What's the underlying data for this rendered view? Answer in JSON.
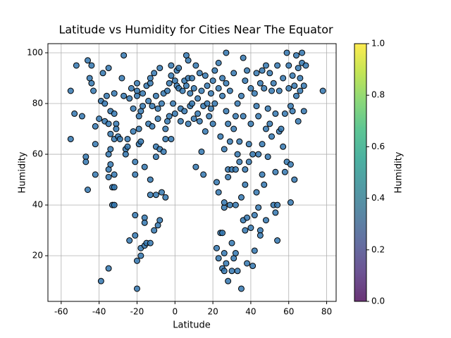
{
  "chart_data": {
    "type": "scatter",
    "title": "Latitude vs Humidity for Cities Near The Equator",
    "x_label": "Latitude",
    "y_label": "Humidity",
    "color": "#3277b0",
    "grid": true,
    "xlim": [
      -67,
      85
    ],
    "ylim": [
      2,
      103.6
    ],
    "xticks": [
      -60,
      -40,
      -20,
      0,
      20,
      40,
      60,
      80
    ],
    "yticks": [
      20,
      40,
      60,
      80,
      100
    ],
    "x": [
      -55,
      -55,
      -53,
      -52,
      -49,
      -47,
      -47,
      -46,
      -46,
      -45,
      -44,
      -44,
      -43,
      -42,
      -42,
      -42,
      -40,
      -39,
      -39,
      -38,
      -37,
      -37,
      -36,
      -35,
      -35,
      -35,
      -35,
      -35,
      -35,
      -34,
      -34,
      -34,
      -34,
      -33,
      -33,
      -32,
      -32,
      -32,
      -32,
      -32,
      -32,
      -31,
      -31,
      -30,
      -29,
      -28,
      -27,
      -27,
      -26,
      -26,
      -25,
      -25,
      -24,
      -24,
      -23,
      -22,
      -22,
      -21,
      -21,
      -21,
      -21,
      -20,
      -20,
      -20,
      -20,
      -20,
      -19,
      -19,
      -19,
      -18,
      -18,
      -18,
      -18,
      -17,
      -17,
      -16,
      -16,
      -16,
      -16,
      -15,
      -15,
      -14,
      -14,
      -13,
      -13,
      -13,
      -13,
      -13,
      -12,
      -12,
      -11,
      -11,
      -10,
      -10,
      -10,
      -10,
      -9,
      -9,
      -9,
      -8,
      -8,
      -8,
      -7,
      -7,
      -6,
      -6,
      -5,
      -5,
      -5,
      -4,
      -4,
      -3,
      -3,
      -2,
      -2,
      -2,
      -1,
      0,
      0,
      1,
      1,
      2,
      2,
      3,
      3,
      4,
      5,
      5,
      6,
      6,
      7,
      7,
      7,
      8,
      8,
      9,
      9,
      10,
      10,
      11,
      11,
      12,
      12,
      13,
      13,
      14,
      14,
      15,
      15,
      16,
      16,
      17,
      17,
      18,
      19,
      19,
      20,
      20,
      21,
      21,
      22,
      22,
      23,
      23,
      23,
      23,
      24,
      24,
      25,
      25,
      25,
      25,
      26,
      26,
      26,
      26,
      26,
      27,
      27,
      27,
      27,
      28,
      28,
      28,
      28,
      29,
      29,
      29,
      30,
      30,
      30,
      31,
      31,
      31,
      32,
      32,
      32,
      32,
      33,
      33,
      33,
      34,
      34,
      35,
      35,
      35,
      36,
      36,
      36,
      37,
      37,
      37,
      37,
      38,
      38,
      38,
      39,
      39,
      40,
      40,
      40,
      41,
      41,
      42,
      42,
      42,
      43,
      43,
      43,
      44,
      44,
      44,
      45,
      45,
      45,
      46,
      46,
      46,
      47,
      47,
      48,
      48,
      48,
      49,
      49,
      50,
      50,
      51,
      51,
      52,
      52,
      53,
      53,
      53,
      54,
      54,
      54,
      55,
      55,
      56,
      57,
      57,
      58,
      58,
      59,
      59,
      60,
      60,
      61,
      61,
      61,
      62,
      62,
      63,
      63,
      64,
      64,
      65,
      65,
      66,
      66,
      67,
      67,
      68,
      68,
      69,
      78
    ],
    "values": [
      85,
      66,
      76,
      95,
      75,
      59,
      57,
      46,
      97,
      90,
      88,
      95,
      85,
      71,
      64,
      52,
      74,
      10,
      81,
      92,
      80,
      73,
      83,
      94,
      72,
      54,
      51,
      60,
      15,
      77,
      68,
      62,
      56,
      40,
      47,
      40,
      47,
      52,
      66,
      76,
      84,
      72,
      70,
      67,
      66,
      90,
      99,
      83,
      62,
      60,
      66,
      63,
      26,
      82,
      86,
      69,
      78,
      57,
      52,
      36,
      28,
      7,
      18,
      88,
      85,
      83,
      70,
      64,
      75,
      20,
      23,
      65,
      77,
      79,
      84,
      55,
      35,
      33,
      24,
      25,
      87,
      81,
      72,
      44,
      25,
      50,
      88,
      90,
      79,
      71,
      92,
      30,
      59,
      44,
      63,
      83,
      32,
      74,
      78,
      62,
      94,
      34,
      45,
      80,
      61,
      84,
      43,
      66,
      70,
      73,
      85,
      75,
      88,
      91,
      95,
      66,
      80,
      76,
      89,
      93,
      87,
      94,
      86,
      78,
      73,
      85,
      89,
      77,
      87,
      99,
      97,
      90,
      72,
      84,
      79,
      90,
      80,
      74,
      86,
      55,
      95,
      82,
      76,
      92,
      73,
      61,
      85,
      52,
      79,
      91,
      69,
      80,
      87,
      75,
      84,
      78,
      89,
      72,
      93,
      80,
      23,
      49,
      19,
      45,
      96,
      86,
      29,
      67,
      29,
      15,
      83,
      90,
      14,
      39,
      41,
      21,
      62,
      17,
      77,
      100,
      88,
      54,
      51,
      72,
      10,
      40,
      65,
      85,
      54,
      25,
      14,
      19,
      70,
      92,
      40,
      54,
      21,
      75,
      14,
      80,
      60,
      57,
      65,
      43,
      7,
      83,
      75,
      34,
      98,
      30,
      48,
      54,
      89,
      35,
      17,
      93,
      64,
      57,
      31,
      86,
      72,
      16,
      60,
      22,
      36,
      84,
      45,
      79,
      92,
      39,
      60,
      75,
      30,
      28,
      88,
      52,
      64,
      93,
      48,
      86,
      34,
      70,
      95,
      59,
      78,
      92,
      72,
      85,
      67,
      40,
      88,
      37,
      53,
      76,
      40,
      26,
      95,
      69,
      85,
      70,
      63,
      90,
      53,
      76,
      57,
      100,
      86,
      95,
      41,
      56,
      79,
      77,
      91,
      50,
      87,
      99,
      83,
      94,
      73,
      90,
      85,
      96,
      100,
      77,
      87,
      95,
      85
    ],
    "colorbar": {
      "label": "Humidity",
      "colormap": "viridis",
      "lim": [
        0,
        1
      ],
      "ticks": [
        {
          "value": 0,
          "label": "0.0"
        },
        {
          "value": 0.2,
          "label": "0.2"
        },
        {
          "value": 0.4,
          "label": "0.4"
        },
        {
          "value": 0.6,
          "label": "0.6"
        },
        {
          "value": 0.8,
          "label": "0.8"
        },
        {
          "value": 1,
          "label": "1.0"
        }
      ]
    }
  }
}
